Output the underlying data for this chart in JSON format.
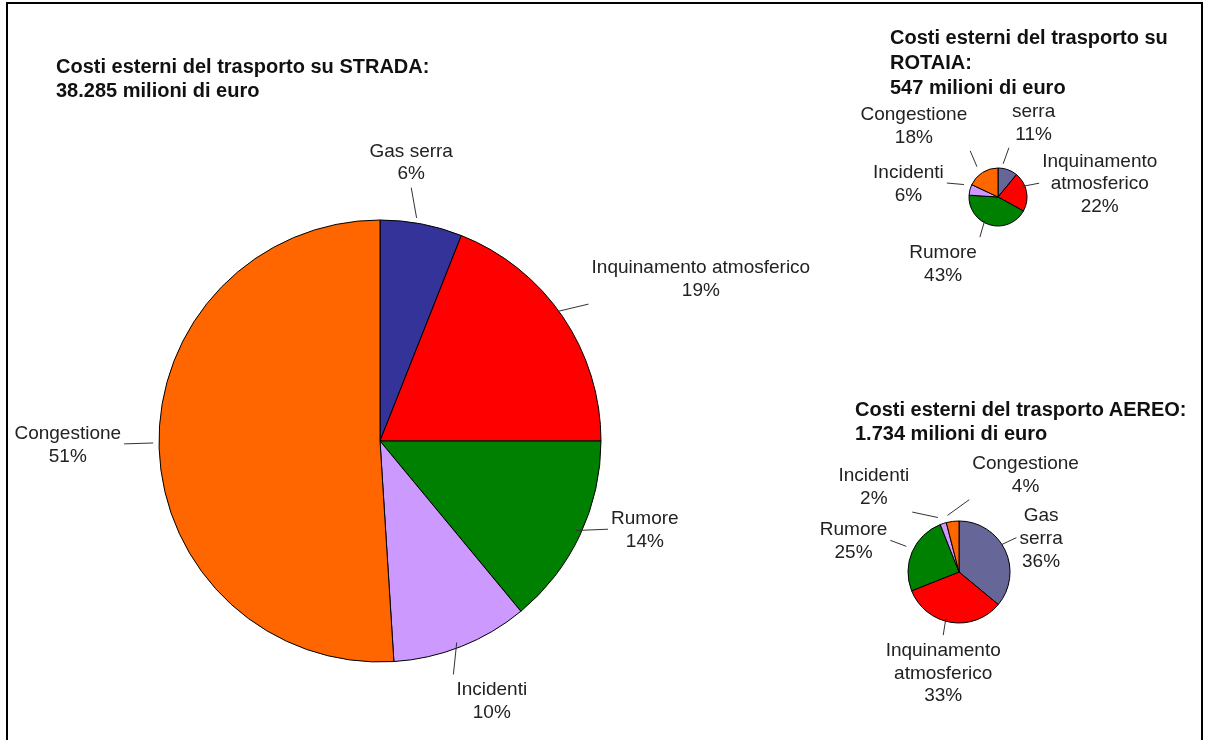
{
  "chart_data": [
    {
      "type": "pie",
      "title": "Costi esterni del trasporto su STRADA:",
      "subtitle": "38.285 milioni di euro",
      "categories": [
        "Gas serra",
        "Inquinamento atmosferico",
        "Rumore",
        "Incidenti",
        "Congestione"
      ],
      "values": [
        6,
        19,
        14,
        10,
        51
      ],
      "colors": [
        "#333399",
        "#ff0000",
        "#008000",
        "#cc99ff",
        "#ff6600"
      ],
      "value_labels": [
        "6%",
        "19%",
        "14%",
        "10%",
        "51%"
      ]
    },
    {
      "type": "pie",
      "title": "Costi esterni del trasporto su ROTAIA:",
      "subtitle": "547 milioni di euro",
      "categories": [
        "serra",
        "Inquinamento atmosferico",
        "Rumore",
        "Incidenti",
        "Congestione"
      ],
      "values": [
        11,
        22,
        43,
        6,
        18
      ],
      "colors": [
        "#666699",
        "#ff0000",
        "#008000",
        "#cc99ff",
        "#ff6600"
      ],
      "value_labels": [
        "11%",
        "22%",
        "43%",
        "6%",
        "18%"
      ]
    },
    {
      "type": "pie",
      "title": "Costi esterni del trasporto AEREO:",
      "subtitle": "1.734 milioni di euro",
      "categories": [
        "Gas serra",
        "Inquinamento atmosferico",
        "Rumore",
        "Incidenti",
        "Congestione"
      ],
      "values": [
        36,
        33,
        25,
        2,
        4
      ],
      "colors": [
        "#666699",
        "#ff0000",
        "#008000",
        "#cc99ff",
        "#ff6600"
      ],
      "value_labels": [
        "36%",
        "33%",
        "25%",
        "2%",
        "4%"
      ]
    }
  ]
}
